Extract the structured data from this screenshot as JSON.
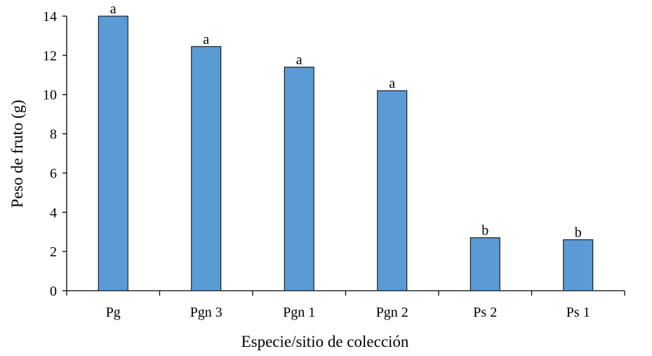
{
  "chart_data": {
    "type": "bar",
    "categories": [
      "Pg",
      "Pgn 3",
      "Pgn 1",
      "Pgn 2",
      "Ps 2",
      "Ps 1"
    ],
    "values": [
      14.0,
      12.45,
      11.4,
      10.2,
      2.7,
      2.6
    ],
    "data_labels": [
      "a",
      "a",
      "a",
      "a",
      "b",
      "b"
    ],
    "xlabel": "Especie/sitio de colección",
    "ylabel": "Peso de fruto (g)",
    "ylim": [
      0,
      14
    ],
    "yticks": [
      0,
      2,
      4,
      6,
      8,
      10,
      12,
      14
    ],
    "grid": false,
    "legend": "none",
    "bar_color": "#5b9bd5",
    "bar_edge_color": "#000000"
  }
}
